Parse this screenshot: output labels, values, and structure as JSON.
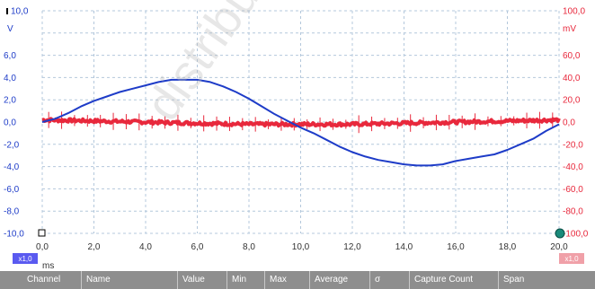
{
  "chart_data": {
    "type": "line",
    "x_unit": "ms",
    "xlim": [
      0,
      20
    ],
    "x_ticks": [
      "0,0",
      "2,0",
      "4,0",
      "6,0",
      "8,0",
      "10,0",
      "12,0",
      "14,0",
      "16,0",
      "18,0",
      "20,0"
    ],
    "left_axis": {
      "unit": "V",
      "ylim": [
        -10,
        10
      ],
      "ticks": [
        "10,0",
        "6,0",
        "4,0",
        "2,0",
        "0,0",
        "-2,0",
        "-4,0",
        "-6,0",
        "-8,0",
        "-10,0"
      ],
      "color": "#1e3cc8"
    },
    "right_axis": {
      "unit": "mV",
      "ylim": [
        -100,
        100
      ],
      "ticks": [
        "100,0",
        "60,0",
        "40,0",
        "20,0",
        "0,0",
        "-20,0",
        "-40,0",
        "-60,0",
        "-80,0",
        "-100,0"
      ],
      "color": "#e8283c"
    },
    "series": [
      {
        "color": "#1e3cc8",
        "axis": "left",
        "x": [
          0,
          0.5,
          1,
          1.5,
          2,
          2.5,
          3,
          3.5,
          4,
          4.5,
          5,
          5.5,
          6,
          6.5,
          7,
          7.5,
          8,
          8.5,
          9,
          9.5,
          10,
          10.5,
          11,
          11.5,
          12,
          12.5,
          13,
          13.5,
          14,
          14.5,
          15,
          15.5,
          16,
          16.5,
          17,
          17.5,
          18,
          18.5,
          19,
          19.5,
          20
        ],
        "y": [
          0,
          0.3,
          0.8,
          1.4,
          1.9,
          2.3,
          2.7,
          3.0,
          3.3,
          3.6,
          3.8,
          3.8,
          3.8,
          3.6,
          3.2,
          2.7,
          2.1,
          1.4,
          0.7,
          0.1,
          -0.5,
          -1.0,
          -1.6,
          -2.2,
          -2.7,
          -3.1,
          -3.4,
          -3.6,
          -3.8,
          -3.9,
          -3.9,
          -3.8,
          -3.5,
          -3.3,
          -3.1,
          -2.9,
          -2.5,
          -2.0,
          -1.5,
          -0.8,
          -0.2
        ]
      },
      {
        "color": "#e8283c",
        "axis": "right",
        "x": [
          0,
          2,
          4,
          6,
          8,
          10,
          12,
          14,
          16,
          18,
          20
        ],
        "y": [
          2,
          1,
          0,
          -1,
          -2,
          -2,
          -2,
          -1,
          0,
          1,
          2
        ]
      }
    ],
    "grid": true,
    "left_scale_label": "x1,0",
    "right_scale_label": "x1,0"
  },
  "measurements": {
    "columns": [
      "Channel",
      "Name",
      "Value",
      "Min",
      "Max",
      "Average",
      "σ",
      "Capture Count",
      "Span"
    ]
  },
  "watermark": "distribution pro"
}
